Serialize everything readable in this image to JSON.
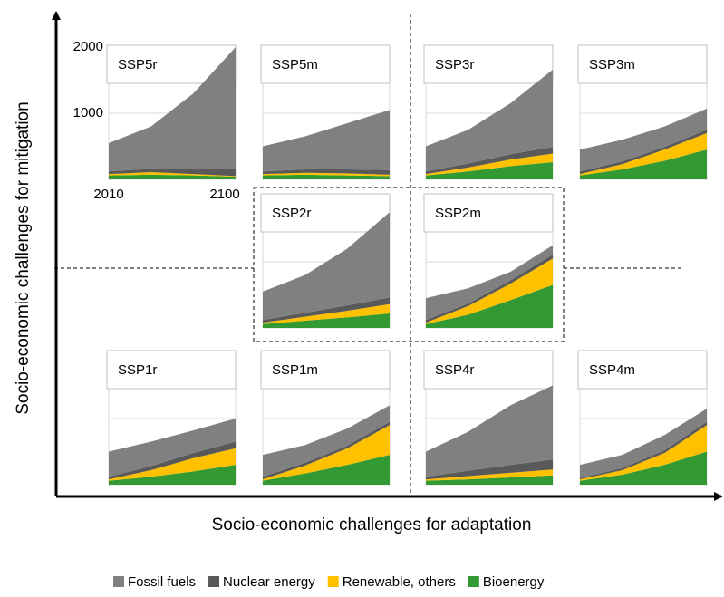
{
  "x_axis_label": "Socio-economic challenges for adaptation",
  "y_axis_label": "Socio-economic challenges for mitigation",
  "chart_data": [
    {
      "type": "stacked_area",
      "title": "SSP5r",
      "x": [
        2010,
        2040,
        2070,
        2100
      ],
      "xlim": [
        2010,
        2100
      ],
      "xticks": [
        2010,
        2100
      ],
      "ylim": [
        0,
        2000
      ],
      "yticks": [
        1000,
        2000
      ],
      "grid": true,
      "tick_labels": true,
      "series": [
        {
          "name": "Fossil fuels",
          "color": "#808080",
          "values": [
            430,
            640,
            1150,
            1850
          ]
        },
        {
          "name": "Nuclear energy",
          "color": "#595959",
          "values": [
            40,
            50,
            70,
            100
          ]
        },
        {
          "name": "Renewable, others",
          "color": "#ffc000",
          "values": [
            20,
            40,
            20,
            10
          ]
        },
        {
          "name": "Bioenergy",
          "color": "#339933",
          "values": [
            60,
            70,
            60,
            40
          ]
        }
      ]
    },
    {
      "type": "stacked_area",
      "title": "SSP5m",
      "x": [
        2010,
        2040,
        2070,
        2100
      ],
      "xlim": [
        2010,
        2100
      ],
      "ylim": [
        0,
        2000
      ],
      "yticks": [
        1000,
        2000
      ],
      "grid": true,
      "tick_labels": false,
      "series": [
        {
          "name": "Fossil fuels",
          "color": "#808080",
          "values": [
            380,
            500,
            700,
            910
          ]
        },
        {
          "name": "Nuclear energy",
          "color": "#595959",
          "values": [
            40,
            50,
            60,
            70
          ]
        },
        {
          "name": "Renewable, others",
          "color": "#ffc000",
          "values": [
            20,
            30,
            30,
            20
          ]
        },
        {
          "name": "Bioenergy",
          "color": "#339933",
          "values": [
            60,
            70,
            60,
            50
          ]
        }
      ]
    },
    {
      "type": "stacked_area",
      "title": "SSP3r",
      "x": [
        2010,
        2040,
        2070,
        2100
      ],
      "xlim": [
        2010,
        2100
      ],
      "ylim": [
        0,
        2000
      ],
      "yticks": [
        1000,
        2000
      ],
      "grid": true,
      "tick_labels": false,
      "series": [
        {
          "name": "Fossil fuels",
          "color": "#808080",
          "values": [
            380,
            510,
            770,
            1170
          ]
        },
        {
          "name": "Nuclear energy",
          "color": "#595959",
          "values": [
            40,
            60,
            80,
            100
          ]
        },
        {
          "name": "Renewable, others",
          "color": "#ffc000",
          "values": [
            20,
            60,
            100,
            130
          ]
        },
        {
          "name": "Bioenergy",
          "color": "#339933",
          "values": [
            60,
            120,
            200,
            260
          ]
        }
      ]
    },
    {
      "type": "stacked_area",
      "title": "SSP3m",
      "x": [
        2010,
        2040,
        2070,
        2100
      ],
      "xlim": [
        2010,
        2100
      ],
      "ylim": [
        0,
        2000
      ],
      "yticks": [
        1000,
        2000
      ],
      "grid": true,
      "tick_labels": false,
      "series": [
        {
          "name": "Fossil fuels",
          "color": "#808080",
          "values": [
            330,
            330,
            310,
            320
          ]
        },
        {
          "name": "Nuclear energy",
          "color": "#595959",
          "values": [
            40,
            40,
            40,
            50
          ]
        },
        {
          "name": "Renewable, others",
          "color": "#ffc000",
          "values": [
            20,
            80,
            170,
            250
          ]
        },
        {
          "name": "Bioenergy",
          "color": "#339933",
          "values": [
            60,
            150,
            280,
            450
          ]
        }
      ]
    },
    {
      "type": "stacked_area",
      "title": "SSP2r",
      "x": [
        2010,
        2040,
        2070,
        2100
      ],
      "xlim": [
        2010,
        2100
      ],
      "ylim": [
        0,
        2000
      ],
      "yticks": [
        1000,
        2000
      ],
      "grid": true,
      "tick_labels": false,
      "series": [
        {
          "name": "Fossil fuels",
          "color": "#808080",
          "values": [
            430,
            570,
            860,
            1290
          ]
        },
        {
          "name": "Nuclear energy",
          "color": "#595959",
          "values": [
            40,
            60,
            80,
            100
          ]
        },
        {
          "name": "Renewable, others",
          "color": "#ffc000",
          "values": [
            20,
            60,
            100,
            140
          ]
        },
        {
          "name": "Bioenergy",
          "color": "#339933",
          "values": [
            60,
            110,
            160,
            220
          ]
        }
      ]
    },
    {
      "type": "stacked_area",
      "title": "SSP2m",
      "x": [
        2010,
        2040,
        2070,
        2100
      ],
      "xlim": [
        2010,
        2100
      ],
      "ylim": [
        0,
        2000
      ],
      "yticks": [
        1000,
        2000
      ],
      "grid": true,
      "tick_labels": false,
      "series": [
        {
          "name": "Fossil fuels",
          "color": "#808080",
          "values": [
            330,
            230,
            130,
            140
          ]
        },
        {
          "name": "Nuclear energy",
          "color": "#595959",
          "values": [
            40,
            40,
            50,
            60
          ]
        },
        {
          "name": "Renewable, others",
          "color": "#ffc000",
          "values": [
            20,
            130,
            250,
            400
          ]
        },
        {
          "name": "Bioenergy",
          "color": "#339933",
          "values": [
            60,
            200,
            420,
            650
          ]
        }
      ]
    },
    {
      "type": "stacked_area",
      "title": "SSP1r",
      "x": [
        2010,
        2040,
        2070,
        2100
      ],
      "xlim": [
        2010,
        2100
      ],
      "ylim": [
        0,
        2000
      ],
      "yticks": [
        1000,
        2000
      ],
      "grid": true,
      "tick_labels": false,
      "series": [
        {
          "name": "Fossil fuels",
          "color": "#808080",
          "values": [
            380,
            370,
            340,
            350
          ]
        },
        {
          "name": "Nuclear energy",
          "color": "#595959",
          "values": [
            40,
            60,
            80,
            100
          ]
        },
        {
          "name": "Renewable, others",
          "color": "#ffc000",
          "values": [
            20,
            100,
            200,
            250
          ]
        },
        {
          "name": "Bioenergy",
          "color": "#339933",
          "values": [
            60,
            120,
            200,
            300
          ]
        }
      ]
    },
    {
      "type": "stacked_area",
      "title": "SSP1m",
      "x": [
        2010,
        2040,
        2070,
        2100
      ],
      "xlim": [
        2010,
        2100
      ],
      "ylim": [
        0,
        2000
      ],
      "yticks": [
        1000,
        2000
      ],
      "grid": true,
      "tick_labels": false,
      "series": [
        {
          "name": "Fossil fuels",
          "color": "#808080",
          "values": [
            330,
            270,
            260,
            250
          ]
        },
        {
          "name": "Nuclear energy",
          "color": "#595959",
          "values": [
            40,
            40,
            40,
            50
          ]
        },
        {
          "name": "Renewable, others",
          "color": "#ffc000",
          "values": [
            20,
            120,
            250,
            450
          ]
        },
        {
          "name": "Bioenergy",
          "color": "#339933",
          "values": [
            60,
            170,
            300,
            450
          ]
        }
      ]
    },
    {
      "type": "stacked_area",
      "title": "SSP4r",
      "x": [
        2010,
        2040,
        2070,
        2100
      ],
      "xlim": [
        2010,
        2100
      ],
      "ylim": [
        0,
        2000
      ],
      "yticks": [
        1000,
        2000
      ],
      "grid": true,
      "tick_labels": false,
      "series": [
        {
          "name": "Fossil fuels",
          "color": "#808080",
          "values": [
            380,
            590,
            900,
            1120
          ]
        },
        {
          "name": "Nuclear energy",
          "color": "#595959",
          "values": [
            40,
            80,
            120,
            150
          ]
        },
        {
          "name": "Renewable, others",
          "color": "#ffc000",
          "values": [
            20,
            50,
            70,
            90
          ]
        },
        {
          "name": "Bioenergy",
          "color": "#339933",
          "values": [
            60,
            80,
            110,
            140
          ]
        }
      ]
    },
    {
      "type": "stacked_area",
      "title": "SSP4m",
      "x": [
        2010,
        2040,
        2070,
        2100
      ],
      "xlim": [
        2010,
        2100
      ],
      "ylim": [
        0,
        2000
      ],
      "yticks": [
        1000,
        2000
      ],
      "grid": true,
      "tick_labels": false,
      "series": [
        {
          "name": "Fossil fuels",
          "color": "#808080",
          "values": [
            200,
            200,
            230,
            200
          ]
        },
        {
          "name": "Nuclear energy",
          "color": "#595959",
          "values": [
            20,
            30,
            40,
            50
          ]
        },
        {
          "name": "Renewable, others",
          "color": "#ffc000",
          "values": [
            20,
            70,
            180,
            400
          ]
        },
        {
          "name": "Bioenergy",
          "color": "#339933",
          "values": [
            60,
            150,
            300,
            500
          ]
        }
      ]
    }
  ]
}
